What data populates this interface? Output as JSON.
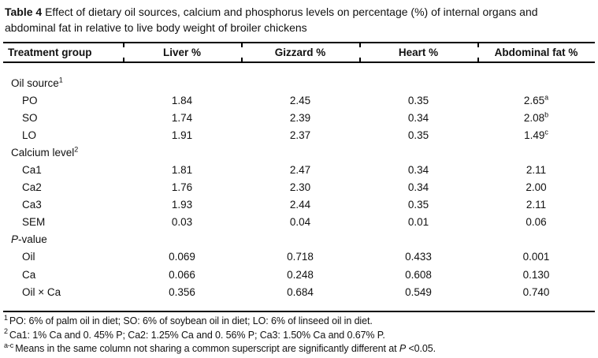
{
  "colors": {
    "background": "#ffffff",
    "text": "#111111",
    "rule": "#000000"
  },
  "title": {
    "label": "Table 4",
    "rest": " Effect of dietary oil sources, calcium and phosphorus levels on percentage (%) of internal organs and abdominal fat in relative to live body weight of broiler chickens"
  },
  "table": {
    "columns": [
      "Treatment group",
      "Liver %",
      "Gizzard %",
      "Heart %",
      "Abdominal fat %"
    ],
    "rows": [
      {
        "label": "Oil source",
        "sup": "1"
      },
      {
        "label": "PO",
        "c1": "1.84",
        "c2": "2.45",
        "c3": "0.35",
        "c4": "2.65",
        "c4sup": "a"
      },
      {
        "label": "SO",
        "c1": "1.74",
        "c2": "2.39",
        "c3": "0.34",
        "c4": "2.08",
        "c4sup": "b"
      },
      {
        "label": "LO",
        "c1": "1.91",
        "c2": "2.37",
        "c3": "0.35",
        "c4": "1.49",
        "c4sup": "c"
      },
      {
        "label": "Calcium level",
        "sup": "2"
      },
      {
        "label": "Ca1",
        "c1": "1.81",
        "c2": "2.47",
        "c3": "0.34",
        "c4": "2.11"
      },
      {
        "label": "Ca2",
        "c1": "1.76",
        "c2": "2.30",
        "c3": "0.34",
        "c4": "2.00"
      },
      {
        "label": "Ca3",
        "c1": "1.93",
        "c2": "2.44",
        "c3": "0.35",
        "c4": "2.11"
      },
      {
        "label": "SEM",
        "c1": "0.03",
        "c2": "0.04",
        "c3": "0.01",
        "c4": "0.06"
      },
      {
        "label_italic": "P",
        "label_rest": "-value"
      },
      {
        "label": "Oil",
        "c1": "0.069",
        "c2": "0.718",
        "c3": "0.433",
        "c4": "0.001"
      },
      {
        "label": "Ca",
        "c1": "0.066",
        "c2": "0.248",
        "c3": "0.608",
        "c4": "0.130"
      },
      {
        "label": "Oil × Ca",
        "c1": "0.356",
        "c2": "0.684",
        "c3": "0.549",
        "c4": "0.740"
      }
    ]
  },
  "footnotes": [
    {
      "marker": "1",
      "text": "PO: 6% of palm oil in diet; SO: 6% of soybean oil in diet; LO: 6% of linseed oil in diet."
    },
    {
      "marker": "2",
      "text": "Ca1: 1% Ca and 0. 45% P; Ca2: 1.25% Ca and 0. 56% P; Ca3: 1.50% Ca and 0.67% P."
    },
    {
      "marker": "a-c",
      "pre": "Means in the same column not sharing a common superscript are significantly different at ",
      "italic": "P",
      "post": " <0.05."
    }
  ]
}
